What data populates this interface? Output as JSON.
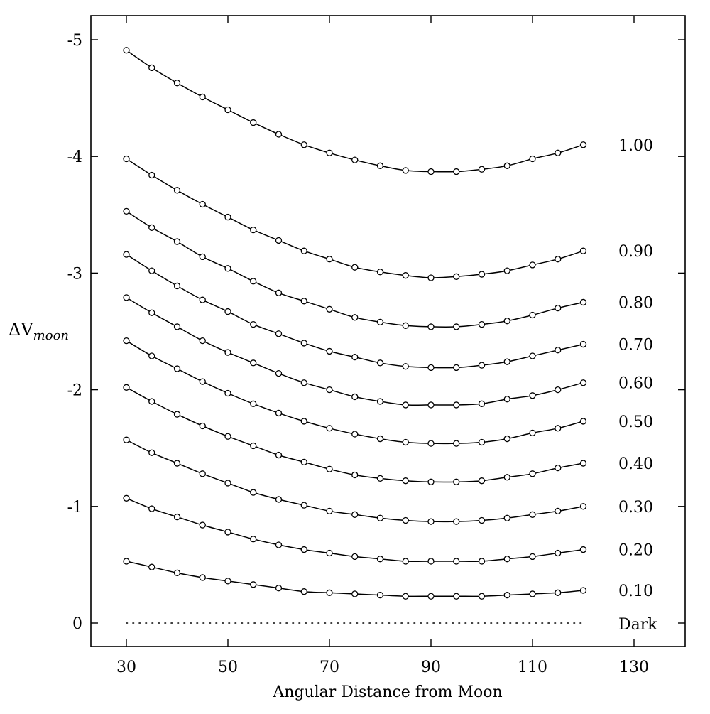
{
  "chart_data": {
    "type": "line",
    "title": "",
    "xlabel": "Angular Distance from Moon",
    "ylabel": {
      "main": "ΔV",
      "sub": "moon"
    },
    "xlim": [
      24,
      140
    ],
    "ylim": [
      0.2,
      -5.2
    ],
    "y_axis_inverted": true,
    "x_ticks": [
      30,
      50,
      70,
      90,
      110,
      130
    ],
    "x_tick_labels": [
      "30",
      "50",
      "70",
      "90",
      "110",
      "130"
    ],
    "y_ticks": [
      -5,
      -4,
      -3,
      -2,
      -1,
      0
    ],
    "y_tick_labels": [
      "-5",
      "-4",
      "-3",
      "-2",
      "-1",
      "0"
    ],
    "grid": false,
    "marker": "open-circle",
    "x": [
      30,
      35,
      40,
      45,
      50,
      55,
      60,
      65,
      70,
      75,
      80,
      85,
      90,
      95,
      100,
      105,
      110,
      115,
      120
    ],
    "series": [
      {
        "label": "1.00",
        "values": [
          -4.91,
          -4.76,
          -4.63,
          -4.51,
          -4.4,
          -4.29,
          -4.19,
          -4.1,
          -4.03,
          -3.97,
          -3.92,
          -3.88,
          -3.87,
          -3.87,
          -3.89,
          -3.92,
          -3.98,
          -4.03,
          -4.1
        ]
      },
      {
        "label": "0.90",
        "values": [
          -3.98,
          -3.84,
          -3.71,
          -3.59,
          -3.48,
          -3.37,
          -3.28,
          -3.19,
          -3.12,
          -3.05,
          -3.01,
          -2.98,
          -2.96,
          -2.97,
          -2.99,
          -3.02,
          -3.07,
          -3.12,
          -3.19
        ]
      },
      {
        "label": "0.80",
        "values": [
          -3.53,
          -3.39,
          -3.27,
          -3.14,
          -3.04,
          -2.93,
          -2.83,
          -2.76,
          -2.69,
          -2.62,
          -2.58,
          -2.55,
          -2.54,
          -2.54,
          -2.56,
          -2.59,
          -2.64,
          -2.7,
          -2.75
        ]
      },
      {
        "label": "0.70",
        "values": [
          -3.16,
          -3.02,
          -2.89,
          -2.77,
          -2.67,
          -2.56,
          -2.48,
          -2.4,
          -2.33,
          -2.28,
          -2.23,
          -2.2,
          -2.19,
          -2.19,
          -2.21,
          -2.24,
          -2.29,
          -2.34,
          -2.39
        ]
      },
      {
        "label": "0.60",
        "values": [
          -2.79,
          -2.66,
          -2.54,
          -2.42,
          -2.32,
          -2.23,
          -2.14,
          -2.06,
          -2.0,
          -1.94,
          -1.9,
          -1.87,
          -1.87,
          -1.87,
          -1.88,
          -1.92,
          -1.95,
          -2.0,
          -2.06
        ]
      },
      {
        "label": "0.50",
        "values": [
          -2.42,
          -2.29,
          -2.18,
          -2.07,
          -1.97,
          -1.88,
          -1.8,
          -1.73,
          -1.67,
          -1.62,
          -1.58,
          -1.55,
          -1.54,
          -1.54,
          -1.55,
          -1.58,
          -1.63,
          -1.67,
          -1.73
        ]
      },
      {
        "label": "0.40",
        "values": [
          -2.02,
          -1.9,
          -1.79,
          -1.69,
          -1.6,
          -1.52,
          -1.44,
          -1.38,
          -1.32,
          -1.27,
          -1.24,
          -1.22,
          -1.21,
          -1.21,
          -1.22,
          -1.25,
          -1.28,
          -1.33,
          -1.37
        ]
      },
      {
        "label": "0.30",
        "values": [
          -1.57,
          -1.46,
          -1.37,
          -1.28,
          -1.2,
          -1.12,
          -1.06,
          -1.01,
          -0.96,
          -0.93,
          -0.9,
          -0.88,
          -0.87,
          -0.87,
          -0.88,
          -0.9,
          -0.93,
          -0.96,
          -1.0
        ]
      },
      {
        "label": "0.20",
        "values": [
          -1.07,
          -0.98,
          -0.91,
          -0.84,
          -0.78,
          -0.72,
          -0.67,
          -0.63,
          -0.6,
          -0.57,
          -0.55,
          -0.53,
          -0.53,
          -0.53,
          -0.53,
          -0.55,
          -0.57,
          -0.6,
          -0.63
        ]
      },
      {
        "label": "0.10",
        "values": [
          -0.53,
          -0.48,
          -0.43,
          -0.39,
          -0.36,
          -0.33,
          -0.3,
          -0.27,
          -0.26,
          -0.25,
          -0.24,
          -0.23,
          -0.23,
          -0.23,
          -0.23,
          -0.24,
          -0.25,
          -0.26,
          -0.28
        ]
      }
    ],
    "dark": {
      "label": "Dark",
      "value": 0,
      "x_range": [
        30,
        120
      ]
    }
  }
}
